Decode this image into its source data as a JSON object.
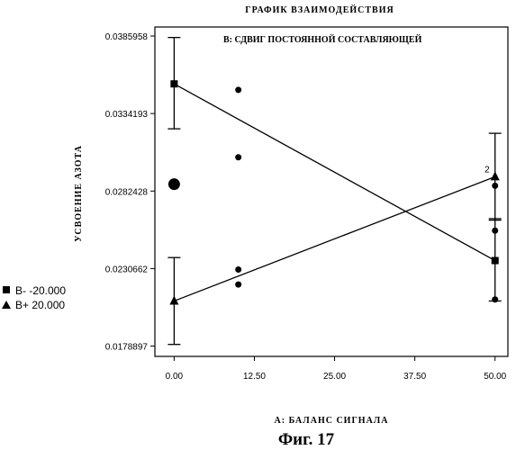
{
  "figure": {
    "caption": "Фиг. 17"
  },
  "chart_data": {
    "type": "scatter",
    "title": "ГРАФИК ВЗАИМОДЕЙСТВИЯ",
    "subtitle": "B: СДВИГ ПОСТОЯННОЙ СОСТАВЛЯЮЩЕЙ",
    "xlabel": "A: БАЛАНС СИГНАЛА",
    "ylabel": "УСВОЕНИЕ АЗОТА",
    "xlim": [
      -3,
      52
    ],
    "ylim": [
      0.0172,
      0.0392
    ],
    "x_ticks": [
      0,
      12.5,
      25,
      37.5,
      50
    ],
    "x_tick_labels": [
      "0.00",
      "12.50",
      "25.00",
      "37.50",
      "50.00"
    ],
    "y_ticks": [
      0.0178897,
      0.0230662,
      0.0282428,
      0.0334193,
      0.0385958
    ],
    "y_tick_labels": [
      "0.0178897",
      "0.0230662",
      "0.0282428",
      "0.0334193",
      "0.0385958"
    ],
    "legend_position": "left",
    "series": [
      {
        "name": "B- -20.000",
        "marker": "square",
        "line": {
          "x": [
            0,
            50
          ],
          "y": [
            0.0354,
            0.0236
          ]
        },
        "error_bars": [
          {
            "x": 0,
            "low": 0.0324,
            "high": 0.0385
          },
          {
            "x": 50,
            "low": 0.0209,
            "high": 0.0264
          }
        ]
      },
      {
        "name": "B+ 20.000",
        "marker": "triangle",
        "line": {
          "x": [
            0,
            50
          ],
          "y": [
            0.0209,
            0.0292
          ]
        },
        "error_bars": [
          {
            "x": 0,
            "low": 0.018,
            "high": 0.0238
          },
          {
            "x": 50,
            "low": 0.0263,
            "high": 0.0321
          }
        ]
      }
    ],
    "observations": [
      {
        "x": 0,
        "y": 0.0287,
        "size": "large"
      },
      {
        "x": 10,
        "y": 0.035
      },
      {
        "x": 10,
        "y": 0.0305
      },
      {
        "x": 10,
        "y": 0.023
      },
      {
        "x": 10,
        "y": 0.022
      },
      {
        "x": 50,
        "y": 0.0286
      },
      {
        "x": 50,
        "y": 0.0256
      },
      {
        "x": 50,
        "y": 0.021
      }
    ],
    "annotations": [
      {
        "text": "2",
        "x": 49.5,
        "y": 0.0295
      }
    ]
  }
}
